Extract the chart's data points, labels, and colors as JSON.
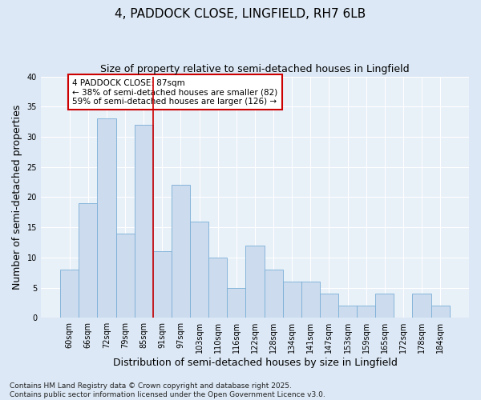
{
  "title": "4, PADDOCK CLOSE, LINGFIELD, RH7 6LB",
  "subtitle": "Size of property relative to semi-detached houses in Lingfield",
  "xlabel": "Distribution of semi-detached houses by size in Lingfield",
  "ylabel": "Number of semi-detached properties",
  "categories": [
    "60sqm",
    "66sqm",
    "72sqm",
    "79sqm",
    "85sqm",
    "91sqm",
    "97sqm",
    "103sqm",
    "110sqm",
    "116sqm",
    "122sqm",
    "128sqm",
    "134sqm",
    "141sqm",
    "147sqm",
    "153sqm",
    "159sqm",
    "165sqm",
    "172sqm",
    "178sqm",
    "184sqm"
  ],
  "values": [
    8,
    19,
    33,
    14,
    32,
    11,
    22,
    16,
    10,
    5,
    12,
    8,
    6,
    6,
    4,
    2,
    2,
    4,
    0,
    4,
    2
  ],
  "bar_color": "#ccdcee",
  "bar_edge_color": "#7aaed6",
  "red_line_x": 4.5,
  "red_line_color": "#cc0000",
  "annotation_text": "4 PADDOCK CLOSE: 87sqm\n← 38% of semi-detached houses are smaller (82)\n59% of semi-detached houses are larger (126) →",
  "annotation_box_facecolor": "#ffffff",
  "annotation_box_edgecolor": "#cc0000",
  "ylim": [
    0,
    40
  ],
  "yticks": [
    0,
    5,
    10,
    15,
    20,
    25,
    30,
    35,
    40
  ],
  "footnote": "Contains HM Land Registry data © Crown copyright and database right 2025.\nContains public sector information licensed under the Open Government Licence v3.0.",
  "bg_color": "#dce8f5",
  "plot_bg_color": "#e8f0f8",
  "title_fontsize": 11,
  "subtitle_fontsize": 9,
  "axis_label_fontsize": 9,
  "tick_fontsize": 7,
  "annotation_fontsize": 7.5,
  "footnote_fontsize": 6.5
}
